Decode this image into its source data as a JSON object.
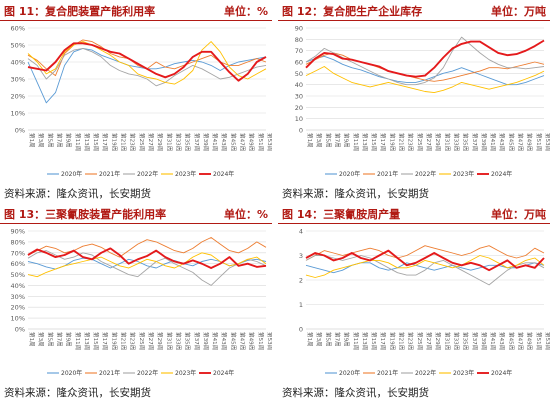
{
  "colors": {
    "y2020": "#5b9bd5",
    "y2021": "#ed7d31",
    "y2022": "#a5a5a5",
    "y2023": "#ffc000",
    "y2024": "#e41a1c",
    "header": "#b11a14",
    "grid": "#d9d9d9"
  },
  "panels": [
    {
      "title": "图 11：复合肥装置产能利用率",
      "unit": "单位：%",
      "source": "资料来源：隆众资讯，长安期货"
    },
    {
      "title": "图 12：复合肥生产企业库存",
      "unit": "单位：万吨",
      "source": "资料来源：隆众资讯，长安期货"
    },
    {
      "title": "图 13：三聚氰胺装置产能利用率",
      "unit": "单位：%",
      "source": "资料来源：隆众资讯，长安期货"
    },
    {
      "title": "图 14：三聚氰胺周产量",
      "unit": "单位：万吨",
      "source": "资料来源：隆众资讯，长安期货"
    }
  ],
  "chart_data": [
    {
      "type": "line",
      "title": "图 11：复合肥装置产能利用率",
      "ylim": [
        0,
        60
      ],
      "yticks": [
        "0%",
        "10%",
        "20%",
        "30%",
        "40%",
        "50%",
        "60%"
      ],
      "categories": [
        "第1周",
        "第3周",
        "第5周",
        "第7周",
        "第9周",
        "第11周",
        "第13周",
        "第15周",
        "第17周",
        "第19周",
        "第21周",
        "第23周",
        "第25周",
        "第27周",
        "第29周",
        "第31周",
        "第33周",
        "第35周",
        "第37周",
        "第39周",
        "第41周",
        "第43周",
        "第45周",
        "第47周",
        "第49周",
        "第51周",
        "第53周"
      ],
      "legend": "bottom",
      "grid": true,
      "series": [
        {
          "name": "2020年",
          "color_key": "y2020",
          "values": [
            40,
            28,
            16,
            22,
            38,
            46,
            48,
            47,
            44,
            42,
            40,
            38,
            37,
            36,
            36,
            37,
            39,
            40,
            41,
            40,
            38,
            35,
            38,
            40,
            41,
            42,
            43
          ]
        },
        {
          "name": "2021年",
          "color_key": "y2021",
          "values": [
            44,
            41,
            36,
            32,
            45,
            50,
            53,
            52,
            49,
            45,
            43,
            42,
            38,
            36,
            40,
            37,
            36,
            38,
            40,
            42,
            44,
            40,
            38,
            38,
            40,
            42,
            40
          ]
        },
        {
          "name": "2022年",
          "color_key": "y2022",
          "values": [
            42,
            38,
            30,
            35,
            44,
            47,
            48,
            46,
            43,
            38,
            35,
            33,
            32,
            30,
            26,
            28,
            32,
            35,
            38,
            36,
            33,
            30,
            31,
            33,
            35,
            37,
            38
          ]
        },
        {
          "name": "2023年",
          "color_key": "y2023",
          "values": [
            45,
            40,
            33,
            36,
            46,
            50,
            52,
            50,
            47,
            44,
            40,
            38,
            33,
            31,
            30,
            28,
            27,
            30,
            35,
            47,
            52,
            46,
            37,
            32,
            30,
            33,
            36
          ]
        },
        {
          "name": "2024年",
          "color_key": "y2024",
          "values": [
            37,
            36,
            35,
            40,
            47,
            51,
            51,
            50,
            48,
            46,
            45,
            42,
            39,
            36,
            33,
            31,
            33,
            37,
            43,
            46,
            46,
            40,
            34,
            29,
            33,
            40,
            43
          ]
        }
      ]
    },
    {
      "type": "line",
      "title": "图 12：复合肥生产企业库存",
      "ylim": [
        0,
        90
      ],
      "yticks": [
        "0",
        "10",
        "20",
        "30",
        "40",
        "50",
        "60",
        "70",
        "80",
        "90"
      ],
      "categories": [
        "第1周",
        "第3周",
        "第5周",
        "第7周",
        "第9周",
        "第11周",
        "第13周",
        "第15周",
        "第17周",
        "第19周",
        "第21周",
        "第23周",
        "第25周",
        "第27周",
        "第29周",
        "第31周",
        "第33周",
        "第35周",
        "第37周",
        "第39周",
        "第41周",
        "第43周",
        "第45周",
        "第47周",
        "第49周",
        "第51周",
        "第53周"
      ],
      "legend": "bottom",
      "grid": true,
      "series": [
        {
          "name": "2020年",
          "color_key": "y2020",
          "values": [
            60,
            63,
            65,
            62,
            58,
            55,
            53,
            50,
            47,
            45,
            43,
            42,
            42,
            44,
            47,
            50,
            52,
            55,
            52,
            49,
            46,
            43,
            40,
            40,
            42,
            45,
            48
          ]
        },
        {
          "name": "2021年",
          "color_key": "y2021",
          "values": [
            58,
            62,
            66,
            68,
            66,
            62,
            60,
            58,
            55,
            52,
            50,
            48,
            46,
            44,
            43,
            44,
            46,
            48,
            50,
            52,
            55,
            55,
            54,
            56,
            58,
            60,
            58
          ]
        },
        {
          "name": "2022年",
          "color_key": "y2022",
          "values": [
            60,
            65,
            72,
            68,
            64,
            60,
            56,
            52,
            48,
            45,
            42,
            40,
            40,
            42,
            46,
            55,
            70,
            82,
            75,
            68,
            62,
            58,
            55,
            55,
            54,
            55,
            56
          ]
        },
        {
          "name": "2023年",
          "color_key": "y2023",
          "values": [
            48,
            52,
            56,
            50,
            46,
            42,
            40,
            38,
            40,
            42,
            40,
            38,
            36,
            34,
            33,
            35,
            38,
            42,
            40,
            38,
            36,
            38,
            40,
            42,
            45,
            48,
            52
          ]
        },
        {
          "name": "2024年",
          "color_key": "y2024",
          "values": [
            55,
            63,
            68,
            67,
            63,
            62,
            60,
            58,
            56,
            52,
            50,
            48,
            47,
            48,
            55,
            64,
            72,
            76,
            78,
            78,
            73,
            68,
            66,
            67,
            70,
            74,
            79
          ]
        }
      ]
    },
    {
      "type": "line",
      "title": "图 13：三聚氰胺装置产能利用率",
      "ylim": [
        0,
        90
      ],
      "yticks": [
        "0%",
        "10%",
        "20%",
        "30%",
        "40%",
        "50%",
        "60%",
        "70%",
        "80%",
        "90%"
      ],
      "categories": [
        "第1周",
        "第3周",
        "第5周",
        "第7周",
        "第9周",
        "第11周",
        "第13周",
        "第15周",
        "第17周",
        "第19周",
        "第21周",
        "第23周",
        "第25周",
        "第27周",
        "第29周",
        "第31周",
        "第33周",
        "第35周",
        "第37周",
        "第39周",
        "第41周",
        "第43周",
        "第45周",
        "第47周",
        "第49周",
        "第51周",
        "第53周"
      ],
      "legend": "bottom",
      "grid": true,
      "series": [
        {
          "name": "2020年",
          "color_key": "y2020",
          "values": [
            62,
            60,
            57,
            55,
            58,
            63,
            65,
            64,
            60,
            56,
            60,
            64,
            62,
            58,
            56,
            60,
            63,
            60,
            58,
            62,
            64,
            62,
            58,
            60,
            63,
            64,
            62
          ]
        },
        {
          "name": "2021年",
          "color_key": "y2021",
          "values": [
            68,
            72,
            76,
            74,
            70,
            72,
            76,
            78,
            75,
            70,
            66,
            72,
            78,
            82,
            80,
            76,
            72,
            70,
            74,
            80,
            84,
            78,
            72,
            70,
            74,
            80,
            75
          ]
        },
        {
          "name": "2022年",
          "color_key": "y2022",
          "values": [
            65,
            70,
            72,
            68,
            64,
            66,
            70,
            68,
            62,
            58,
            54,
            50,
            48,
            55,
            62,
            65,
            60,
            56,
            52,
            45,
            40,
            48,
            56,
            60,
            64,
            62,
            58
          ]
        },
        {
          "name": "2023年",
          "color_key": "y2023",
          "values": [
            50,
            48,
            52,
            55,
            58,
            60,
            62,
            64,
            66,
            62,
            58,
            56,
            60,
            64,
            62,
            58,
            56,
            60,
            66,
            70,
            68,
            62,
            58,
            60,
            64,
            66,
            60
          ]
        },
        {
          "name": "2024年",
          "color_key": "y2024",
          "values": [
            68,
            73,
            70,
            66,
            68,
            72,
            66,
            64,
            70,
            74,
            68,
            60,
            64,
            67,
            72,
            66,
            62,
            60,
            63,
            60,
            56,
            60,
            66,
            58,
            60,
            57,
            58
          ]
        }
      ]
    },
    {
      "type": "line",
      "title": "图 14：三聚氰胺周产量",
      "ylim": [
        0,
        4
      ],
      "yticks": [
        "0",
        "1",
        "2",
        "3",
        "4"
      ],
      "categories": [
        "第1周",
        "第3周",
        "第5周",
        "第7周",
        "第9周",
        "第11周",
        "第13周",
        "第15周",
        "第17周",
        "第19周",
        "第21周",
        "第23周",
        "第25周",
        "第27周",
        "第29周",
        "第31周",
        "第33周",
        "第35周",
        "第37周",
        "第39周",
        "第41周",
        "第43周",
        "第45周",
        "第47周",
        "第49周",
        "第51周",
        "第53周"
      ],
      "legend": "bottom",
      "grid": true,
      "series": [
        {
          "name": "2020年",
          "color_key": "y2020",
          "values": [
            2.6,
            2.5,
            2.4,
            2.3,
            2.4,
            2.6,
            2.7,
            2.7,
            2.5,
            2.4,
            2.5,
            2.7,
            2.6,
            2.5,
            2.4,
            2.5,
            2.6,
            2.5,
            2.4,
            2.5,
            2.6,
            2.6,
            2.5,
            2.5,
            2.6,
            2.7,
            2.6
          ]
        },
        {
          "name": "2021年",
          "color_key": "y2021",
          "values": [
            2.8,
            3.0,
            3.2,
            3.1,
            3.0,
            3.1,
            3.2,
            3.3,
            3.2,
            3.0,
            2.9,
            3.0,
            3.2,
            3.4,
            3.3,
            3.2,
            3.1,
            3.0,
            3.1,
            3.3,
            3.4,
            3.2,
            3.0,
            2.9,
            3.0,
            3.3,
            3.1
          ]
        },
        {
          "name": "2022年",
          "color_key": "y2022",
          "values": [
            2.8,
            3.0,
            3.0,
            2.9,
            2.8,
            2.9,
            3.0,
            2.9,
            2.7,
            2.5,
            2.3,
            2.2,
            2.2,
            2.4,
            2.7,
            2.8,
            2.6,
            2.4,
            2.2,
            2.0,
            1.8,
            2.1,
            2.4,
            2.6,
            2.7,
            2.7,
            2.5
          ]
        },
        {
          "name": "2023年",
          "color_key": "y2023",
          "values": [
            2.2,
            2.1,
            2.2,
            2.4,
            2.5,
            2.6,
            2.7,
            2.8,
            2.8,
            2.7,
            2.5,
            2.5,
            2.6,
            2.8,
            2.7,
            2.6,
            2.5,
            2.6,
            2.8,
            3.0,
            2.9,
            2.7,
            2.5,
            2.6,
            2.8,
            2.9,
            2.6
          ]
        },
        {
          "name": "2024年",
          "color_key": "y2024",
          "values": [
            2.9,
            3.1,
            3.0,
            2.8,
            2.9,
            3.1,
            2.9,
            2.8,
            3.0,
            3.2,
            2.9,
            2.6,
            2.7,
            2.9,
            3.1,
            2.9,
            2.7,
            2.6,
            2.7,
            2.6,
            2.4,
            2.6,
            2.8,
            2.5,
            2.6,
            2.5,
            2.9
          ]
        }
      ]
    }
  ]
}
